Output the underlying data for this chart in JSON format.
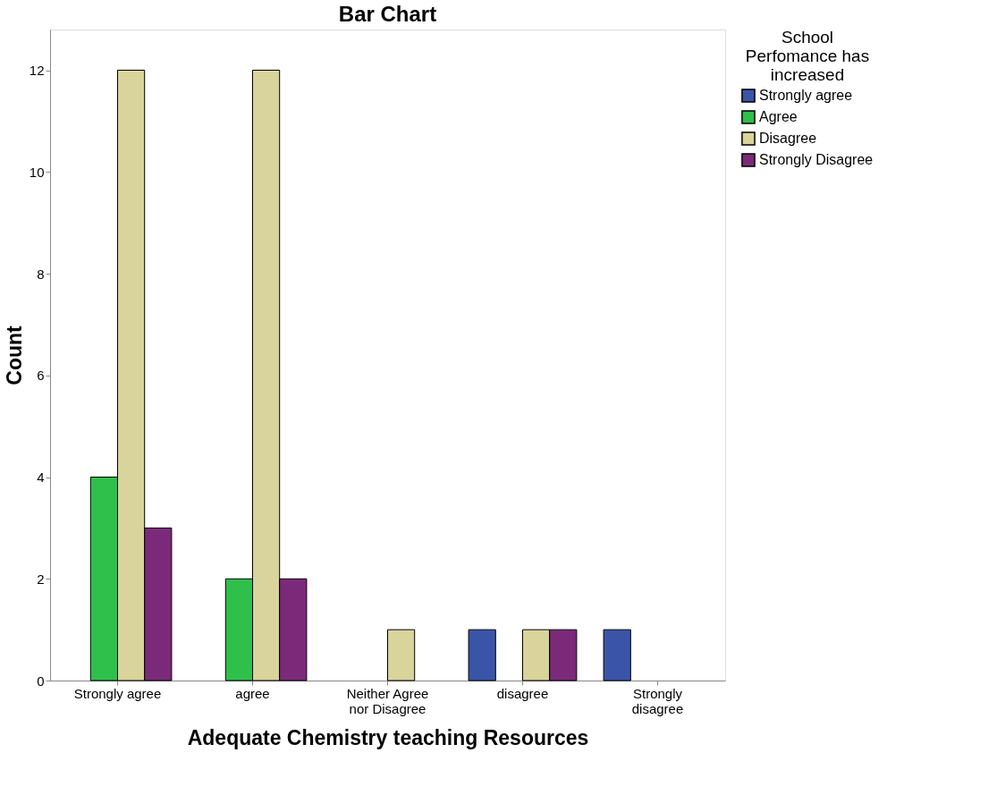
{
  "chart_data": {
    "type": "bar",
    "title": "Bar Chart",
    "xlabel": "Adequate Chemistry teaching Resources",
    "ylabel": "Count",
    "legend_title": "School Perfomance has increased",
    "categories": [
      "Strongly agree",
      "agree",
      "Neither Agree nor Disagree",
      "disagree",
      "Strongly disagree"
    ],
    "series": [
      {
        "name": "Strongly agree",
        "color": "#3a55a8",
        "values": [
          null,
          null,
          null,
          1,
          1
        ]
      },
      {
        "name": "Agree",
        "color": "#2fbf4b",
        "values": [
          4,
          2,
          null,
          null,
          null
        ]
      },
      {
        "name": "Disagree",
        "color": "#d9d49b",
        "values": [
          12,
          12,
          1,
          1,
          null
        ]
      },
      {
        "name": "Strongly Disagree",
        "color": "#7b2a7a",
        "values": [
          3,
          2,
          null,
          1,
          null
        ]
      }
    ],
    "ylim": [
      0,
      12.8
    ],
    "yticks": [
      0,
      2,
      4,
      6,
      8,
      10,
      12
    ],
    "grid": false,
    "legend": "top right"
  }
}
